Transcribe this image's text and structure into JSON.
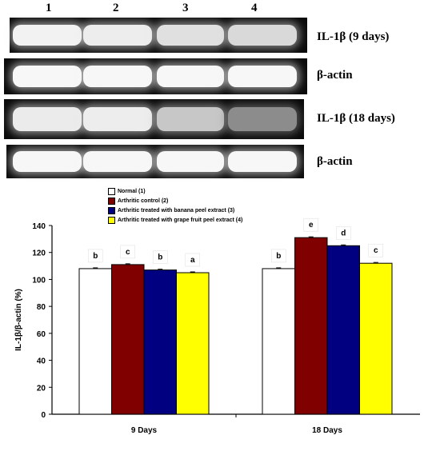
{
  "gel": {
    "lanes": [
      "1",
      "2",
      "3",
      "4"
    ],
    "panels": [
      {
        "label": "IL-1β (9 days)",
        "intensity": [
          0.95,
          0.93,
          0.88,
          0.85
        ]
      },
      {
        "label": "β-actin",
        "intensity": [
          0.97,
          0.97,
          0.97,
          0.97
        ]
      },
      {
        "label": "IL-1β (18 days)",
        "intensity": [
          0.92,
          0.93,
          0.78,
          0.55
        ]
      },
      {
        "label": "β-actin",
        "intensity": [
          0.97,
          0.97,
          0.97,
          0.97
        ]
      }
    ]
  },
  "chart_data": {
    "type": "bar",
    "categories": [
      "9 Days",
      "18 Days"
    ],
    "ylabel": "IL-1β/β-actin (%)",
    "ylim": [
      0,
      140
    ],
    "yticks": [
      0,
      20,
      40,
      60,
      80,
      100,
      120,
      140
    ],
    "series": [
      {
        "name": "Normal (1)",
        "color": "#ffffff",
        "values": [
          108,
          108
        ],
        "letters": [
          "b",
          "b"
        ]
      },
      {
        "name": "Arthritic control (2)",
        "color": "#800000",
        "values": [
          111,
          131
        ],
        "letters": [
          "c",
          "e"
        ]
      },
      {
        "name": "Arthritic treated with banana peel extract (3)",
        "color": "#000080",
        "values": [
          107,
          125
        ],
        "letters": [
          "b",
          "d"
        ]
      },
      {
        "name": "Arthritic treated with grape fruit peel extract (4)",
        "color": "#ffff00",
        "values": [
          105,
          112
        ],
        "letters": [
          "a",
          "c"
        ]
      }
    ]
  }
}
